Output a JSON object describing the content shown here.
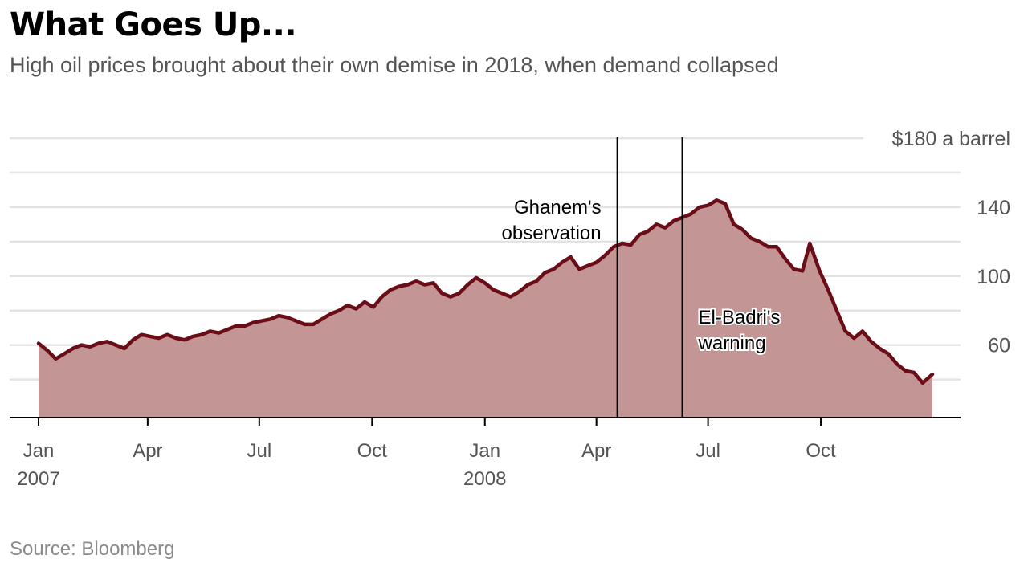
{
  "title": "What Goes Up...",
  "subtitle": "High oil prices brought about their own demise in 2018, when demand collapsed",
  "source": "Source: Bloomberg",
  "colors": {
    "line": "#6b0d16",
    "fill": "#c49595",
    "grid": "#e3e3e3",
    "axis": "#000000",
    "tick_label": "#555555"
  },
  "chart_data": {
    "type": "area",
    "ylim": [
      20,
      180
    ],
    "yticks": [
      {
        "value": 60,
        "label": "60"
      },
      {
        "value": 100,
        "label": "100"
      },
      {
        "value": 140,
        "label": "140"
      },
      {
        "value": 180,
        "label": "$180 a barrel"
      }
    ],
    "gridlines": [
      40,
      60,
      80,
      100,
      120,
      140,
      160,
      180
    ],
    "xlim": [
      "2007-01-02",
      "2008-12-31"
    ],
    "xticks": [
      {
        "date": "2007-01-01",
        "label": "Jan",
        "sublabel": "2007"
      },
      {
        "date": "2007-04-01",
        "label": "Apr",
        "sublabel": ""
      },
      {
        "date": "2007-07-01",
        "label": "Jul",
        "sublabel": ""
      },
      {
        "date": "2007-10-01",
        "label": "Oct",
        "sublabel": ""
      },
      {
        "date": "2008-01-01",
        "label": "Jan",
        "sublabel": "2008"
      },
      {
        "date": "2008-04-01",
        "label": "Apr",
        "sublabel": ""
      },
      {
        "date": "2008-07-01",
        "label": "Jul",
        "sublabel": ""
      },
      {
        "date": "2008-10-01",
        "label": "Oct",
        "sublabel": ""
      }
    ],
    "annotations": [
      {
        "date": "2008-04-18",
        "label": [
          "Ghanem's",
          "observation"
        ],
        "side": "left"
      },
      {
        "date": "2008-06-10",
        "label": [
          "El-Badri's",
          "warning"
        ],
        "side": "right"
      }
    ],
    "series": [
      {
        "x": [
          "2007-01-02",
          "2007-01-09",
          "2007-01-16",
          "2007-01-23",
          "2007-01-30",
          "2007-02-06",
          "2007-02-13",
          "2007-02-20",
          "2007-02-27",
          "2007-03-06",
          "2007-03-13",
          "2007-03-20",
          "2007-03-27",
          "2007-04-03",
          "2007-04-10",
          "2007-04-17",
          "2007-04-24",
          "2007-05-01",
          "2007-05-08",
          "2007-05-15",
          "2007-05-22",
          "2007-05-29",
          "2007-06-05",
          "2007-06-12",
          "2007-06-19",
          "2007-06-26",
          "2007-07-03",
          "2007-07-10",
          "2007-07-17",
          "2007-07-24",
          "2007-07-31",
          "2007-08-07",
          "2007-08-14",
          "2007-08-21",
          "2007-08-28",
          "2007-09-04",
          "2007-09-11",
          "2007-09-18",
          "2007-09-25",
          "2007-10-02",
          "2007-10-09",
          "2007-10-16",
          "2007-10-23",
          "2007-10-30",
          "2007-11-06",
          "2007-11-13",
          "2007-11-20",
          "2007-11-27",
          "2007-12-04",
          "2007-12-11",
          "2007-12-18",
          "2007-12-25",
          "2008-01-01",
          "2008-01-08",
          "2008-01-15",
          "2008-01-22",
          "2008-01-29",
          "2008-02-05",
          "2008-02-12",
          "2008-02-19",
          "2008-02-26",
          "2008-03-04",
          "2008-03-11",
          "2008-03-18",
          "2008-03-25",
          "2008-04-01",
          "2008-04-08",
          "2008-04-15",
          "2008-04-22",
          "2008-04-29",
          "2008-05-06",
          "2008-05-13",
          "2008-05-20",
          "2008-05-27",
          "2008-06-03",
          "2008-06-10",
          "2008-06-17",
          "2008-06-24",
          "2008-07-01",
          "2008-07-08",
          "2008-07-15",
          "2008-07-22",
          "2008-07-29",
          "2008-08-05",
          "2008-08-12",
          "2008-08-19",
          "2008-08-26",
          "2008-09-02",
          "2008-09-09",
          "2008-09-16",
          "2008-09-22",
          "2008-09-30",
          "2008-10-07",
          "2008-10-14",
          "2008-10-21",
          "2008-10-28",
          "2008-11-04",
          "2008-11-11",
          "2008-11-18",
          "2008-11-25",
          "2008-12-02",
          "2008-12-09",
          "2008-12-16",
          "2008-12-23",
          "2008-12-31"
        ],
        "values": [
          61,
          57,
          52,
          55,
          58,
          60,
          59,
          61,
          62,
          60,
          58,
          63,
          66,
          65,
          64,
          66,
          64,
          63,
          65,
          66,
          68,
          67,
          69,
          71,
          71,
          73,
          74,
          75,
          77,
          76,
          74,
          72,
          72,
          75,
          78,
          80,
          83,
          81,
          85,
          82,
          88,
          92,
          94,
          95,
          97,
          95,
          96,
          90,
          88,
          90,
          95,
          99,
          96,
          92,
          90,
          88,
          91,
          95,
          97,
          102,
          104,
          108,
          111,
          104,
          106,
          108,
          112,
          117,
          119,
          118,
          124,
          126,
          130,
          128,
          132,
          134,
          136,
          140,
          141,
          144,
          142,
          130,
          127,
          122,
          120,
          117,
          117,
          110,
          104,
          103,
          119,
          103,
          92,
          80,
          68,
          64,
          68,
          62,
          58,
          55,
          49,
          45,
          44,
          38,
          43
        ]
      }
    ]
  }
}
